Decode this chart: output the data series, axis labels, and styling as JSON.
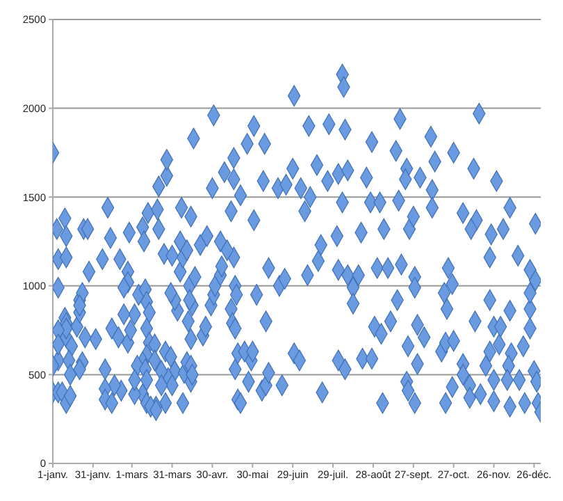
{
  "chart_data": {
    "type": "scatter",
    "marker": "diamond",
    "grid": "y",
    "legend": false,
    "xlim": [
      "--01-01",
      "--12-31"
    ],
    "xticks": [
      {
        "value": "--01-01",
        "label": "1-janv."
      },
      {
        "value": "--01-31",
        "label": "31-janv."
      },
      {
        "value": "--03-01",
        "label": "1-mars"
      },
      {
        "value": "--03-31",
        "label": "31-mars"
      },
      {
        "value": "--04-30",
        "label": "30-avr."
      },
      {
        "value": "--05-30",
        "label": "30-mai"
      },
      {
        "value": "--06-29",
        "label": "29-juin"
      },
      {
        "value": "--07-29",
        "label": "29-juil."
      },
      {
        "value": "--08-28",
        "label": "28-août"
      },
      {
        "value": "--09-27",
        "label": "27-sept."
      },
      {
        "value": "--10-27",
        "label": "27-oct."
      },
      {
        "value": "--11-26",
        "label": "26-nov."
      },
      {
        "value": "--12-26",
        "label": "26-déc."
      }
    ],
    "ylim": [
      0,
      2500
    ],
    "yticks": [
      0,
      500,
      1000,
      1500,
      2000,
      2500
    ],
    "series": [
      {
        "color": "#6a9be0",
        "x": [
          "--01-01",
          "--01-04",
          "--01-10",
          "--01-11",
          "--01-24",
          "--01-27",
          "--02-11",
          "--02-13",
          "--02-27",
          "--03-09",
          "--03-10",
          "--03-13",
          "--03-20",
          "--03-21",
          "--03-21",
          "--03-27",
          "--03-27",
          "--04-07",
          "--04-14",
          "--04-16",
          "--04-30",
          "--05-01",
          "--05-09",
          "--05-16",
          "--05-16",
          "--05-21",
          "--05-26",
          "--05-31",
          "--06-08",
          "--06-07",
          "--06-18",
          "--05-31",
          "--05-14",
          "--06-30",
          "--08-05",
          "--08-06",
          "--07-11",
          "--07-26",
          "--08-07",
          "--09-17",
          "--11-15",
          "--08-27",
          "--09-14",
          "--10-10",
          "--10-27",
          "--11-11",
          "--11-28",
          "--12-08",
          "--12-27",
          "--10-13",
          "--09-22",
          "--09-21",
          "--10-02",
          "--10-11",
          "--10-11",
          "--09-16",
          "--08-26",
          "--09-02",
          "--08-23",
          "--08-02",
          "--08-09",
          "--07-17",
          "--06-29",
          "--06-24",
          "--07-05",
          "--07-12",
          "--07-08",
          "--08-05",
          "--07-25",
          "--11-03",
          "--11-13",
          "--11-09",
          "--11-24",
          "--12-03",
          "--09-05",
          "--09-24",
          "--09-27",
          "--08-01",
          "--08-19",
          "--07-20",
          "--01-01",
          "--01-05",
          "--01-08",
          "--01-11",
          "--01-14",
          "--01-05",
          "--01-05",
          "--01-05",
          "--01-11",
          "--01-28",
          "--02-07",
          "--02-20",
          "--02-26",
          "--02-26",
          "--02-23",
          "--03-06",
          "--03-11",
          "--03-12",
          "--03-14",
          "--03-03",
          "--02-23",
          "--02-14",
          "--02-19",
          "--02-26",
          "--02-28",
          "--03-12",
          "--03-14",
          "--03-18",
          "--03-12",
          "--03-09",
          "--03-18",
          "--03-05",
          "--03-11",
          "--03-12",
          "--03-09",
          "--03-12",
          "--03-03",
          "--02-21",
          "--02-16",
          "--02-09",
          "--02-09",
          "--02-14",
          "--03-03",
          "--02-09",
          "--02-02",
          "--01-25",
          "--01-11",
          "--01-19",
          "--01-21",
          "--01-21",
          "--01-23",
          "--01-21",
          "--01-10",
          "--01-11",
          "--01-11",
          "--01-05",
          "--01-05",
          "--01-15",
          "--01-13",
          "--01-14",
          "--01-01",
          "--01-23",
          "--01-21",
          "--03-25",
          "--03-31",
          "--04-06",
          "--04-08",
          "--04-13",
          "--04-17",
          "--04-15",
          "--04-13",
          "--04-04",
          "--04-02",
          "--03-30",
          "--04-12",
          "--04-14",
          "--04-23",
          "--04-25",
          "--04-29",
          "--05-01",
          "--05-02",
          "--05-06",
          "--05-07",
          "--05-16",
          "--05-17",
          "--05-18",
          "--05-14",
          "--05-15",
          "--05-17",
          "--05-17",
          "--05-19",
          "--05-24",
          "--05-19",
          "--05-21",
          "--05-27",
          "--05-29",
          "--05-30",
          "--06-02",
          "--06-06",
          "--06-09",
          "--06-11",
          "--06-09",
          "--06-11",
          "--06-21",
          "--06-19",
          "--06-23",
          "--03-26",
          "--03-30",
          "--04-02",
          "--03-28",
          "--03-31",
          "--03-26",
          "--03-19",
          "--03-15",
          "--03-19",
          "--04-08",
          "--04-09",
          "--04-11",
          "--04-14",
          "--04-14",
          "--04-15",
          "--03-23",
          "--03-23",
          "--06-30",
          "--07-04",
          "--07-21",
          "--08-02",
          "--08-07",
          "--08-20",
          "--08-27",
          "--09-04",
          "--08-29",
          "--09-03",
          "--09-10",
          "--09-15",
          "--09-23",
          "--09-22",
          "--09-23",
          "--09-28",
          "--09-30",
          "--09-30",
          "--10-05",
          "--10-18",
          "--10-21",
          "--10-27",
          "--10-22",
          "--10-26",
          "--10-21",
          "--11-03",
          "--11-03",
          "--11-08",
          "--11-08",
          "--11-16",
          "--11-20",
          "--11-23",
          "--11-23",
          "--11-26",
          "--11-30",
          "--11-26",
          "--11-26",
          "--12-01",
          "--12-08",
          "--12-09",
          "--12-07",
          "--12-06",
          "--12-08",
          "--12-18",
          "--12-15",
          "--12-19",
          "--12-23",
          "--12-23",
          "--12-23",
          "--12-23",
          "--12-26",
          "--12-28",
          "--12-29",
          "--12-31",
          "--12-27",
          "--07-10",
          "--07-18",
          "--08-02",
          "--08-09",
          "--08-17",
          "--08-31",
          "--09-08",
          "--09-18",
          "--09-28",
          "--09-28",
          "--08-13",
          "--08-13",
          "--10-23",
          "--10-26",
          "--10-20",
          "--11-23",
          "--12-14",
          "--11-12",
          "--04-06",
          "--04-11",
          "--04-21",
          "--04-26",
          "--05-06",
          "--05-11"
        ],
        "values": [
          1750,
          1320,
          1380,
          1280,
          1320,
          1320,
          1440,
          1270,
          1300,
          1330,
          1250,
          1410,
          1430,
          1320,
          1560,
          1620,
          1710,
          1440,
          1390,
          1830,
          1550,
          1960,
          1640,
          1720,
          1600,
          1510,
          1800,
          1900,
          1800,
          1590,
          1550,
          1370,
          1420,
          2070,
          2190,
          2120,
          1900,
          1910,
          1880,
          1940,
          1970,
          1810,
          1760,
          1840,
          1750,
          1660,
          1590,
          1440,
          1350,
          1700,
          1660,
          1600,
          1610,
          1540,
          1440,
          1480,
          1470,
          1470,
          1610,
          1630,
          1650,
          1680,
          1660,
          1570,
          1550,
          1500,
          1420,
          1470,
          1590,
          1410,
          1370,
          1320,
          1290,
          1320,
          1320,
          1320,
          1390,
          1280,
          1300,
          1230,
          400,
          400,
          400,
          340,
          380,
          580,
          990,
          1150,
          1160,
          1080,
          1150,
          1150,
          1080,
          1020,
          990,
          950,
          980,
          910,
          850,
          840,
          840,
          760,
          710,
          680,
          750,
          760,
          680,
          670,
          610,
          570,
          580,
          550,
          530,
          470,
          390,
          340,
          390,
          410,
          440,
          420,
          360,
          340,
          470,
          530,
          700,
          710,
          710,
          770,
          850,
          920,
          960,
          890,
          820,
          790,
          760,
          750,
          670,
          660,
          580,
          500,
          550,
          570,
          530,
          1180,
          1170,
          1080,
          1160,
          1000,
          1050,
          890,
          920,
          860,
          920,
          960,
          800,
          700,
          720,
          770,
          890,
          950,
          1000,
          1060,
          1110,
          1160,
          1000,
          950,
          870,
          790,
          760,
          530,
          620,
          630,
          360,
          340,
          460,
          580,
          630,
          950,
          410,
          440,
          510,
          800,
          1100,
          440,
          1000,
          1040,
          630,
          600,
          520,
          480,
          440,
          340,
          320,
          320,
          300,
          340,
          510,
          570,
          550,
          460,
          500,
          520,
          440,
          620,
          580,
          400,
          580,
          530,
          590,
          590,
          340,
          770,
          730,
          800,
          920,
          660,
          460,
          410,
          340,
          780,
          560,
          710,
          630,
          680,
          690,
          870,
          430,
          340,
          560,
          500,
          440,
          370,
          390,
          550,
          630,
          920,
          770,
          670,
          350,
          470,
          770,
          860,
          620,
          550,
          470,
          320,
          660,
          470,
          340,
          1090,
          870,
          760,
          960,
          520,
          460,
          340,
          290,
          1030,
          1060,
          1140,
          1090,
          1060,
          1060,
          1100,
          1100,
          1120,
          1050,
          990,
          990,
          900,
          1100,
          1010,
          960,
          1160,
          1170,
          800,
          1250,
          1200,
          1230,
          1280,
          1250,
          1200
        ]
      }
    ]
  }
}
